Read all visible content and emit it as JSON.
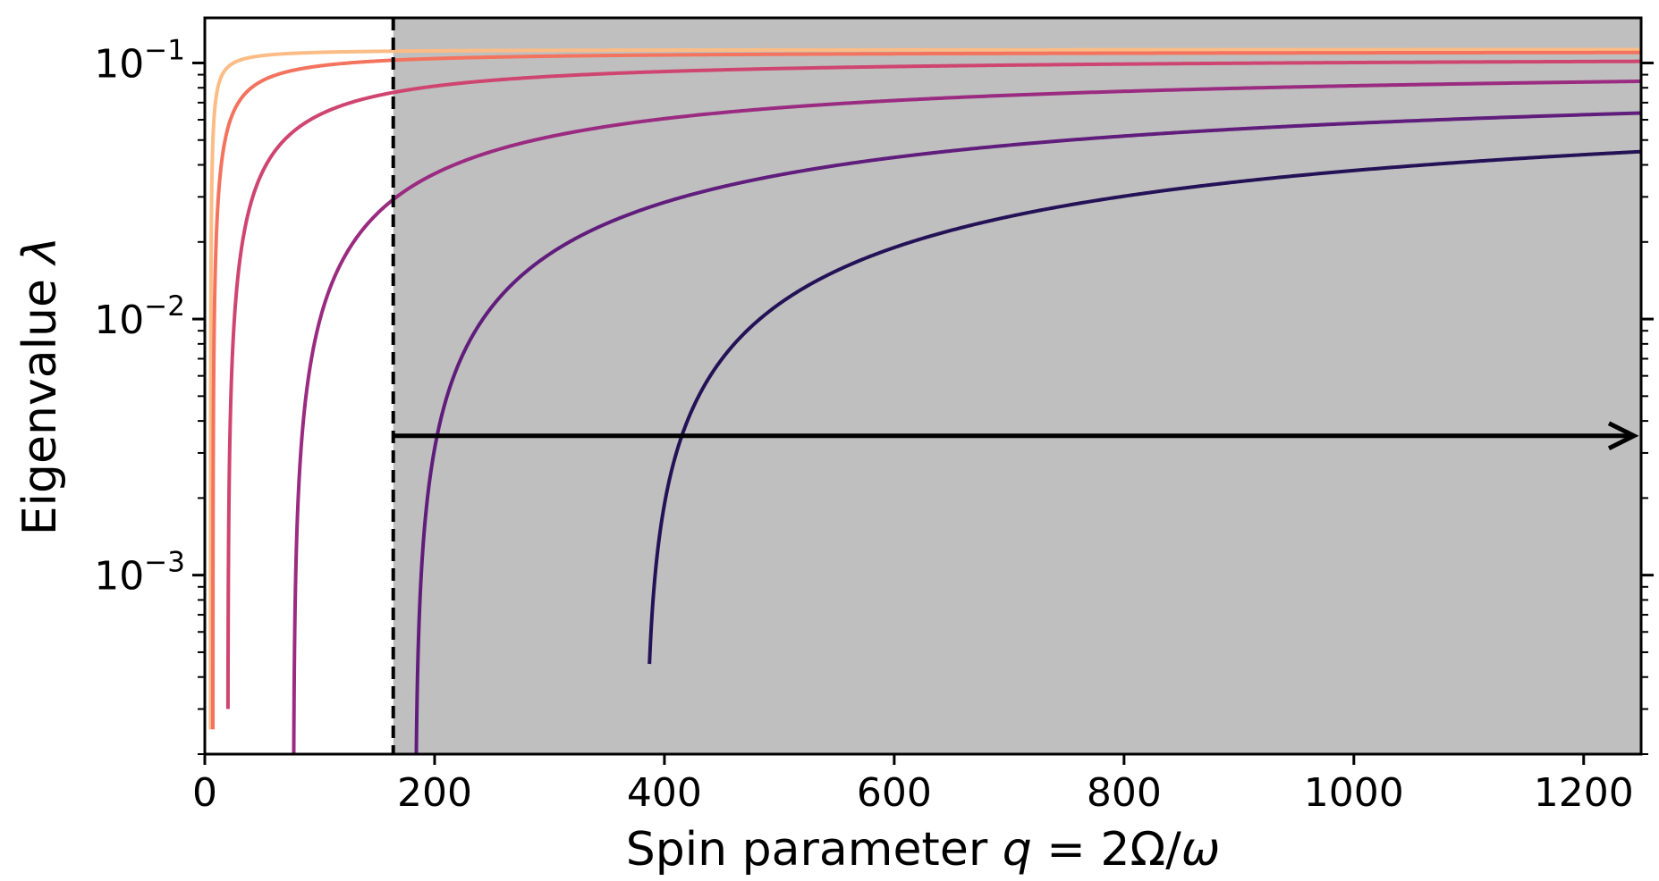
{
  "chart_data": {
    "type": "line",
    "xlabel": "Spin parameter q = 2Ω/ω",
    "ylabel": "Eigenvalue λ",
    "xlim": [
      0,
      1250
    ],
    "ylim": [
      0.0002,
      0.15
    ],
    "yscale": "log",
    "grid": false,
    "x_ticks": [
      0,
      200,
      400,
      600,
      800,
      1000,
      1200
    ],
    "x_tick_labels": [
      "0",
      "200",
      "400",
      "600",
      "800",
      "1000",
      "1200"
    ],
    "y_ticks": [
      0.001,
      0.01,
      0.1
    ],
    "y_tick_labels": [
      {
        "base": "10",
        "exp": "−3"
      },
      {
        "base": "10",
        "exp": "−2"
      },
      {
        "base": "10",
        "exp": "−1"
      }
    ],
    "shaded_region": {
      "x_start": 164,
      "x_end": 1250,
      "color": "#bfbfbf"
    },
    "vline": {
      "x": 164,
      "style": "dashed",
      "color": "#000000"
    },
    "arrow": {
      "x_start": 164,
      "x_end": 1250,
      "y": 0.0035,
      "color": "#000000"
    },
    "series": [
      {
        "color": "#fcbc85",
        "q0": 5,
        "q_end": 1250,
        "L": 0.113,
        "k": 2.6,
        "y_start": 0.00025
      },
      {
        "color": "#f3735e",
        "q0": 7,
        "q_end": 1250,
        "L": 0.111,
        "k": 13,
        "y_start": 0.00025
      },
      {
        "color": "#cf4571",
        "q0": 20,
        "q_end": 1250,
        "L": 0.106,
        "k": 55,
        "y_start": 0.0003
      },
      {
        "color": "#9a2b80",
        "q0": 77,
        "q_end": 1250,
        "L": 0.1,
        "k": 210,
        "y_start": 0.0002
      },
      {
        "color": "#601d7c",
        "q0": 183,
        "q_end": 1250,
        "L": 0.093,
        "k": 490,
        "y_start": 0.0002
      },
      {
        "color": "#241257",
        "q0": 383,
        "q_end": 1250,
        "L": 0.083,
        "k": 730,
        "y_start": 0.00045
      }
    ]
  }
}
